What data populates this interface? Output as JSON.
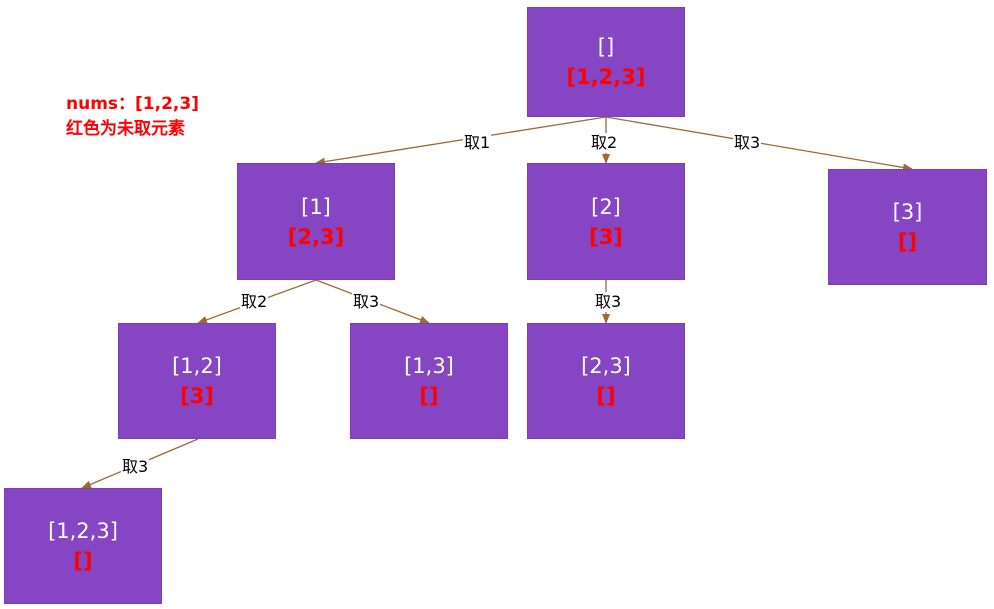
{
  "legend": {
    "line1": "nums：[1,2,3]",
    "line2": "红色为未取元素"
  },
  "nodes": {
    "root": {
      "chosen": "[]",
      "remain": "[1,2,3]"
    },
    "n1": {
      "chosen": "[1]",
      "remain": "[2,3]"
    },
    "n2": {
      "chosen": "[2]",
      "remain": "[3]"
    },
    "n3": {
      "chosen": "[3]",
      "remain": "[]"
    },
    "n12": {
      "chosen": "[1,2]",
      "remain": "[3]"
    },
    "n13": {
      "chosen": "[1,3]",
      "remain": "[]"
    },
    "n23": {
      "chosen": "[2,3]",
      "remain": "[]"
    },
    "n123": {
      "chosen": "[1,2,3]",
      "remain": "[]"
    }
  },
  "edges": {
    "root_n1": "取1",
    "root_n2": "取2",
    "root_n3": "取3",
    "n1_n12": "取2",
    "n1_n13": "取3",
    "n2_n23": "取3",
    "n12_n123": "取3"
  },
  "colors": {
    "node_fill": "#8645c3",
    "chosen_text": "#ffffff",
    "remain_text": "#ff0000",
    "edge": "#9c6a35",
    "legend_text": "#ff0000"
  }
}
